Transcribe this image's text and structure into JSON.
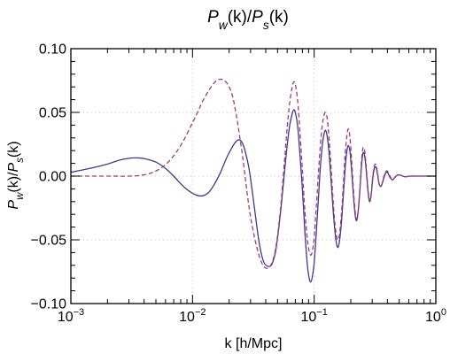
{
  "chart_data": {
    "type": "line",
    "title_parts": [
      {
        "text": "P",
        "italic": true
      },
      {
        "text": "w",
        "italic": true,
        "sub": true
      },
      {
        "text": "(k)/",
        "italic": false
      },
      {
        "text": "P",
        "italic": true
      },
      {
        "text": "s",
        "italic": true,
        "sub": true
      },
      {
        "text": "(k)",
        "italic": false
      }
    ],
    "xlabel": "k [h/Mpc]",
    "ylabel_parts": [
      {
        "text": "P",
        "italic": true
      },
      {
        "text": "w",
        "italic": true,
        "sub": true
      },
      {
        "text": "(k)/",
        "italic": false
      },
      {
        "text": "P",
        "italic": true
      },
      {
        "text": "s",
        "italic": true,
        "sub": true
      },
      {
        "text": "(k)",
        "italic": false
      }
    ],
    "x_scale": "log",
    "xlim": [
      0.001,
      1
    ],
    "ylim": [
      -0.1,
      0.1
    ],
    "x_ticks": [
      {
        "value": 0.001,
        "base": "10",
        "exp": "−3"
      },
      {
        "value": 0.01,
        "base": "10",
        "exp": "−2"
      },
      {
        "value": 0.1,
        "base": "10",
        "exp": "−1"
      },
      {
        "value": 1,
        "base": "10",
        "exp": "0"
      }
    ],
    "y_ticks": [
      {
        "value": -0.1,
        "label": "−0.10"
      },
      {
        "value": -0.05,
        "label": "−0.05"
      },
      {
        "value": 0.0,
        "label": "0.00"
      },
      {
        "value": 0.05,
        "label": "0.05"
      },
      {
        "value": 0.1,
        "label": "0.10"
      }
    ],
    "grid": true,
    "legend": "none",
    "series": [
      {
        "style": "solid",
        "color": "#3b3b8f",
        "points": [
          [
            0.001,
            0.003
          ],
          [
            0.0015,
            0.0065
          ],
          [
            0.002,
            0.0095
          ],
          [
            0.0025,
            0.0125
          ],
          [
            0.003,
            0.014
          ],
          [
            0.0035,
            0.0143
          ],
          [
            0.004,
            0.0138
          ],
          [
            0.005,
            0.011
          ],
          [
            0.006,
            0.006
          ],
          [
            0.007,
            0.0
          ],
          [
            0.008,
            -0.006
          ],
          [
            0.009,
            -0.0105
          ],
          [
            0.0105,
            -0.0145
          ],
          [
            0.012,
            -0.0155
          ],
          [
            0.0135,
            -0.013
          ],
          [
            0.015,
            -0.007
          ],
          [
            0.017,
            0.003
          ],
          [
            0.019,
            0.014
          ],
          [
            0.021,
            0.022
          ],
          [
            0.0225,
            0.0265
          ],
          [
            0.024,
            0.0285
          ],
          [
            0.0255,
            0.0265
          ],
          [
            0.027,
            0.02
          ],
          [
            0.029,
            0.007
          ],
          [
            0.031,
            -0.012
          ],
          [
            0.033,
            -0.032
          ],
          [
            0.035,
            -0.05
          ],
          [
            0.037,
            -0.062
          ],
          [
            0.039,
            -0.0685
          ],
          [
            0.041,
            -0.0705
          ],
          [
            0.043,
            -0.0708
          ],
          [
            0.045,
            -0.069
          ],
          [
            0.048,
            -0.06
          ],
          [
            0.051,
            -0.042
          ],
          [
            0.054,
            -0.02
          ],
          [
            0.057,
            0.003
          ],
          [
            0.06,
            0.024
          ],
          [
            0.063,
            0.04
          ],
          [
            0.066,
            0.049
          ],
          [
            0.068,
            0.052
          ],
          [
            0.07,
            0.05
          ],
          [
            0.073,
            0.04
          ],
          [
            0.076,
            0.02
          ],
          [
            0.08,
            -0.01
          ],
          [
            0.084,
            -0.045
          ],
          [
            0.088,
            -0.07
          ],
          [
            0.091,
            -0.08
          ],
          [
            0.094,
            -0.083
          ],
          [
            0.097,
            -0.078
          ],
          [
            0.1,
            -0.068
          ],
          [
            0.104,
            -0.045
          ],
          [
            0.108,
            -0.02
          ],
          [
            0.112,
            0.005
          ],
          [
            0.116,
            0.022
          ],
          [
            0.12,
            0.032
          ],
          [
            0.124,
            0.036
          ],
          [
            0.128,
            0.031
          ],
          [
            0.132,
            0.02
          ],
          [
            0.137,
            0.0
          ],
          [
            0.142,
            -0.022
          ],
          [
            0.147,
            -0.04
          ],
          [
            0.152,
            -0.052
          ],
          [
            0.157,
            -0.056
          ],
          [
            0.162,
            -0.05
          ],
          [
            0.168,
            -0.035
          ],
          [
            0.174,
            -0.014
          ],
          [
            0.18,
            0.007
          ],
          [
            0.186,
            0.02
          ],
          [
            0.191,
            0.024
          ],
          [
            0.197,
            0.019
          ],
          [
            0.203,
            0.005
          ],
          [
            0.21,
            -0.015
          ],
          [
            0.217,
            -0.03
          ],
          [
            0.223,
            -0.035
          ],
          [
            0.23,
            -0.028
          ],
          [
            0.238,
            -0.01
          ],
          [
            0.245,
            0.008
          ],
          [
            0.252,
            0.018
          ],
          [
            0.26,
            0.016
          ],
          [
            0.268,
            0.004
          ],
          [
            0.277,
            -0.012
          ],
          [
            0.285,
            -0.02
          ],
          [
            0.294,
            -0.015
          ],
          [
            0.303,
            -0.002
          ],
          [
            0.312,
            0.006
          ],
          [
            0.322,
            0.007
          ],
          [
            0.332,
            0.001
          ],
          [
            0.342,
            -0.006
          ],
          [
            0.355,
            -0.008
          ],
          [
            0.37,
            -0.003
          ],
          [
            0.385,
            0.002
          ],
          [
            0.4,
            0.003
          ],
          [
            0.42,
            -0.001
          ],
          [
            0.44,
            -0.003
          ],
          [
            0.46,
            -0.001
          ],
          [
            0.49,
            0.001
          ],
          [
            0.52,
            0.0005
          ],
          [
            0.56,
            -0.0005
          ],
          [
            0.62,
            0.0
          ],
          [
            0.7,
            0.0
          ],
          [
            1.0,
            0.0
          ]
        ]
      },
      {
        "style": "dashed",
        "color": "#a03c70",
        "points": [
          [
            0.001,
            0.0
          ],
          [
            0.002,
            0.0
          ],
          [
            0.003,
            0.0
          ],
          [
            0.004,
            0.001
          ],
          [
            0.005,
            0.004
          ],
          [
            0.006,
            0.009
          ],
          [
            0.007,
            0.016
          ],
          [
            0.008,
            0.024
          ],
          [
            0.009,
            0.033
          ],
          [
            0.01,
            0.042
          ],
          [
            0.011,
            0.05
          ],
          [
            0.012,
            0.058
          ],
          [
            0.013,
            0.064
          ],
          [
            0.014,
            0.069
          ],
          [
            0.015,
            0.073
          ],
          [
            0.016,
            0.0755
          ],
          [
            0.017,
            0.076
          ],
          [
            0.018,
            0.0755
          ],
          [
            0.019,
            0.0735
          ],
          [
            0.02,
            0.07
          ],
          [
            0.021,
            0.065
          ],
          [
            0.022,
            0.057
          ],
          [
            0.023,
            0.047
          ],
          [
            0.024,
            0.036
          ],
          [
            0.026,
            0.013
          ],
          [
            0.028,
            -0.012
          ],
          [
            0.03,
            -0.032
          ],
          [
            0.033,
            -0.052
          ],
          [
            0.036,
            -0.065
          ],
          [
            0.039,
            -0.0715
          ],
          [
            0.042,
            -0.072
          ],
          [
            0.045,
            -0.068
          ],
          [
            0.048,
            -0.058
          ],
          [
            0.051,
            -0.04
          ],
          [
            0.054,
            -0.016
          ],
          [
            0.057,
            0.012
          ],
          [
            0.06,
            0.038
          ],
          [
            0.063,
            0.058
          ],
          [
            0.066,
            0.07
          ],
          [
            0.068,
            0.074
          ],
          [
            0.07,
            0.072
          ],
          [
            0.073,
            0.06
          ],
          [
            0.076,
            0.038
          ],
          [
            0.08,
            0.005
          ],
          [
            0.084,
            -0.028
          ],
          [
            0.088,
            -0.05
          ],
          [
            0.091,
            -0.059
          ],
          [
            0.094,
            -0.062
          ],
          [
            0.097,
            -0.058
          ],
          [
            0.1,
            -0.048
          ],
          [
            0.104,
            -0.025
          ],
          [
            0.108,
            0.0
          ],
          [
            0.112,
            0.022
          ],
          [
            0.116,
            0.038
          ],
          [
            0.12,
            0.047
          ],
          [
            0.124,
            0.05
          ],
          [
            0.128,
            0.045
          ],
          [
            0.132,
            0.032
          ],
          [
            0.137,
            0.01
          ],
          [
            0.142,
            -0.014
          ],
          [
            0.147,
            -0.034
          ],
          [
            0.152,
            -0.046
          ],
          [
            0.157,
            -0.05
          ],
          [
            0.162,
            -0.045
          ],
          [
            0.168,
            -0.028
          ],
          [
            0.174,
            -0.005
          ],
          [
            0.18,
            0.018
          ],
          [
            0.186,
            0.032
          ],
          [
            0.191,
            0.037
          ],
          [
            0.197,
            0.03
          ],
          [
            0.203,
            0.013
          ],
          [
            0.21,
            -0.01
          ],
          [
            0.217,
            -0.027
          ],
          [
            0.223,
            -0.034
          ],
          [
            0.23,
            -0.027
          ],
          [
            0.238,
            -0.008
          ],
          [
            0.245,
            0.012
          ],
          [
            0.252,
            0.022
          ],
          [
            0.26,
            0.02
          ],
          [
            0.268,
            0.007
          ],
          [
            0.277,
            -0.01
          ],
          [
            0.285,
            -0.019
          ],
          [
            0.294,
            -0.014
          ],
          [
            0.303,
            0.0
          ],
          [
            0.312,
            0.008
          ],
          [
            0.322,
            0.009
          ],
          [
            0.332,
            0.002
          ],
          [
            0.342,
            -0.006
          ],
          [
            0.355,
            -0.008
          ],
          [
            0.37,
            -0.002
          ],
          [
            0.385,
            0.003
          ],
          [
            0.4,
            0.004
          ],
          [
            0.42,
            0.0
          ],
          [
            0.44,
            -0.003
          ],
          [
            0.46,
            -0.001
          ],
          [
            0.49,
            0.001
          ],
          [
            0.52,
            0.0005
          ],
          [
            0.56,
            -0.0005
          ],
          [
            0.62,
            0.0
          ],
          [
            0.7,
            0.0
          ],
          [
            1.0,
            0.0
          ]
        ]
      }
    ]
  }
}
